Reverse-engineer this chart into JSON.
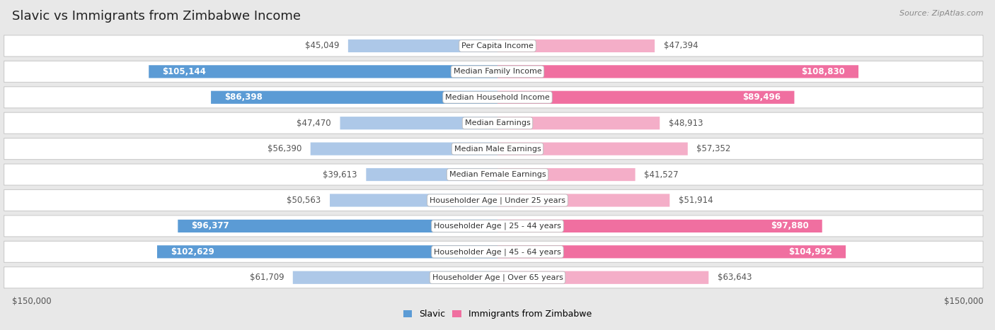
{
  "title": "Slavic vs Immigrants from Zimbabwe Income",
  "source": "Source: ZipAtlas.com",
  "categories": [
    "Per Capita Income",
    "Median Family Income",
    "Median Household Income",
    "Median Earnings",
    "Median Male Earnings",
    "Median Female Earnings",
    "Householder Age | Under 25 years",
    "Householder Age | 25 - 44 years",
    "Householder Age | 45 - 64 years",
    "Householder Age | Over 65 years"
  ],
  "slavic_values": [
    45049,
    105144,
    86398,
    47470,
    56390,
    39613,
    50563,
    96377,
    102629,
    61709
  ],
  "zimbabwe_values": [
    47394,
    108830,
    89496,
    48913,
    57352,
    41527,
    51914,
    97880,
    104992,
    63643
  ],
  "slavic_labels": [
    "$45,049",
    "$105,144",
    "$86,398",
    "$47,470",
    "$56,390",
    "$39,613",
    "$50,563",
    "$96,377",
    "$102,629",
    "$61,709"
  ],
  "zimbabwe_labels": [
    "$47,394",
    "$108,830",
    "$89,496",
    "$48,913",
    "$57,352",
    "$41,527",
    "$51,914",
    "$97,880",
    "$104,992",
    "$63,643"
  ],
  "slavic_color_light": "#adc8e8",
  "slavic_color_dark": "#5b9bd5",
  "zimbabwe_color_light": "#f4aec8",
  "zimbabwe_color_dark": "#f06fa0",
  "max_value": 150000,
  "bg_color": "#e8e8e8",
  "row_color": "#ffffff",
  "label_fontsize": 8.5,
  "title_fontsize": 13,
  "category_fontsize": 8,
  "threshold": 70000,
  "axis_label_fontsize": 8.5,
  "legend_fontsize": 9
}
